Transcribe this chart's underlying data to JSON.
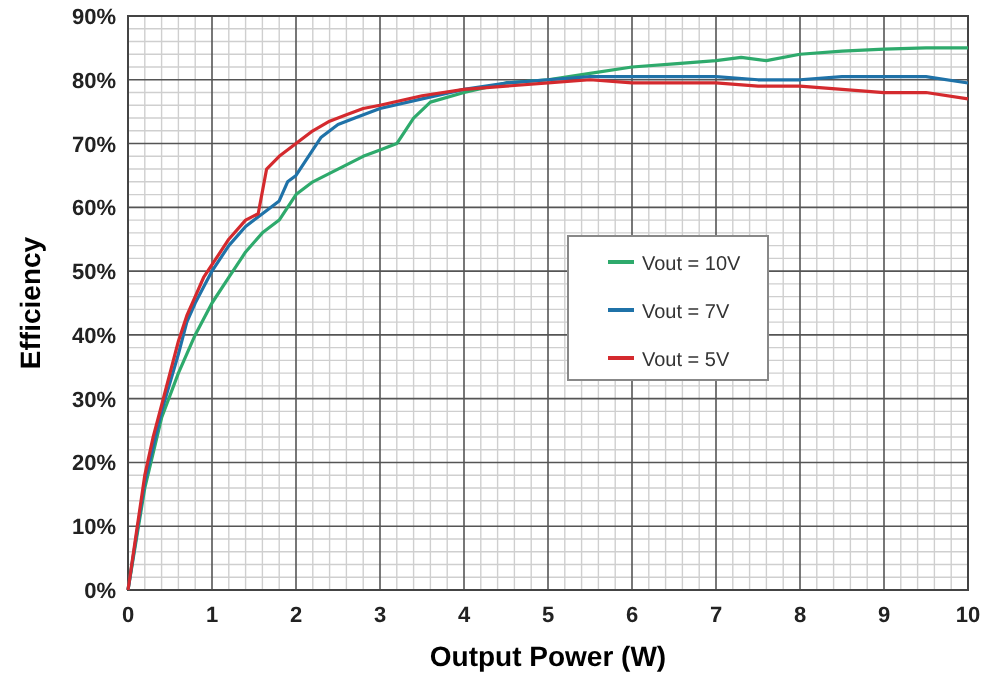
{
  "chart_data": {
    "type": "line",
    "xlabel": "Output Power (W)",
    "ylabel": "Efficiency",
    "xlim": [
      0,
      10
    ],
    "xticks": [
      0,
      1,
      2,
      3,
      4,
      5,
      6,
      7,
      8,
      9,
      10
    ],
    "ylim": [
      0,
      90
    ],
    "yticks": [
      {
        "value": 0,
        "label": "0%"
      },
      {
        "value": 10,
        "label": "10%"
      },
      {
        "value": 20,
        "label": "20%"
      },
      {
        "value": 30,
        "label": "30%"
      },
      {
        "value": 40,
        "label": "40%"
      },
      {
        "value": 50,
        "label": "50%"
      },
      {
        "value": 60,
        "label": "60%"
      },
      {
        "value": 70,
        "label": "70%"
      },
      {
        "value": 80,
        "label": "80%"
      },
      {
        "value": 90,
        "label": "90%"
      }
    ],
    "grid": true,
    "legend": "right",
    "marker": "none",
    "line_style": "solid",
    "series": [
      {
        "name": "Vout = 10V",
        "color": "#2eaa6c",
        "x": [
          0,
          0.2,
          0.4,
          0.6,
          0.8,
          1,
          1.2,
          1.4,
          1.6,
          1.8,
          2,
          2.2,
          2.5,
          2.8,
          3,
          3.2,
          3.4,
          3.6,
          4,
          4.5,
          5,
          5.5,
          6,
          6.5,
          7,
          7.3,
          7.6,
          8,
          8.5,
          9,
          9.5,
          10
        ],
        "values": [
          0,
          16,
          27,
          34,
          40,
          45,
          49,
          53,
          56,
          58,
          62,
          64,
          66,
          68,
          69,
          70,
          74,
          76.5,
          78,
          79.5,
          80,
          81,
          82,
          82.5,
          83,
          83.5,
          83,
          84,
          84.5,
          84.8,
          85,
          85
        ]
      },
      {
        "name": "Vout = 7V",
        "color": "#1f72a8",
        "x": [
          0,
          0.2,
          0.4,
          0.6,
          0.7,
          0.8,
          1,
          1.2,
          1.4,
          1.6,
          1.8,
          1.9,
          2,
          2.1,
          2.3,
          2.5,
          2.7,
          3,
          3.5,
          4,
          4.5,
          5,
          5.5,
          6,
          6.5,
          7,
          7.5,
          8,
          8.5,
          9,
          9.5,
          10
        ],
        "values": [
          0,
          17,
          28,
          37,
          42,
          45,
          50,
          54,
          57,
          59,
          61,
          64,
          65,
          67,
          71,
          73,
          74,
          75.5,
          77,
          78.5,
          79.5,
          80,
          80.5,
          80.5,
          80.5,
          80.5,
          80,
          80,
          80.5,
          80.5,
          80.5,
          79.5
        ]
      },
      {
        "name": "Vout = 5V",
        "color": "#d42a2e",
        "x": [
          0,
          0.1,
          0.2,
          0.3,
          0.4,
          0.5,
          0.6,
          0.7,
          0.8,
          0.9,
          1,
          1.2,
          1.4,
          1.55,
          1.65,
          1.8,
          2,
          2.2,
          2.4,
          2.6,
          2.8,
          3,
          3.5,
          4,
          4.5,
          5,
          5.5,
          6,
          6.5,
          7,
          7.5,
          8,
          8.5,
          9,
          9.5,
          10
        ],
        "values": [
          0,
          9,
          18,
          24,
          29,
          34,
          39,
          43,
          46,
          49,
          51,
          55,
          58,
          59,
          66,
          68,
          70,
          72,
          73.5,
          74.5,
          75.5,
          76,
          77.5,
          78.5,
          79,
          79.5,
          80,
          79.5,
          79.5,
          79.5,
          79,
          79,
          78.5,
          78,
          78,
          77
        ]
      }
    ]
  }
}
